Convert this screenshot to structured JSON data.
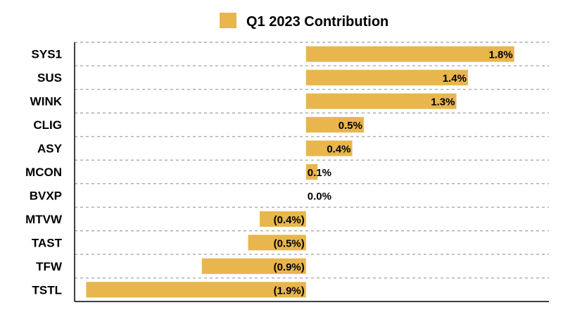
{
  "chart_data": {
    "type": "bar",
    "orientation": "horizontal",
    "categories": [
      "SYS1",
      "SUS",
      "WINK",
      "CLIG",
      "ASY",
      "MCON",
      "BVXP",
      "MTVW",
      "TAST",
      "TFW",
      "TSTL"
    ],
    "series": [
      {
        "name": "Q1 2023 Contribution",
        "values": [
          1.8,
          1.4,
          1.3,
          0.5,
          0.4,
          0.1,
          0.0,
          -0.4,
          -0.5,
          -0.9,
          -1.9
        ],
        "labels": [
          "1.8%",
          "1.4%",
          "1.3%",
          "0.5%",
          "0.4%",
          "0.1%",
          "0.0%",
          "(0.4%)",
          "(0.5%)",
          "(0.9%)",
          "(1.9%)"
        ]
      }
    ],
    "xlim": [
      -2.0,
      2.1
    ],
    "grid": true,
    "legend_position": "top-center",
    "bar_color": "#E8B64C"
  }
}
